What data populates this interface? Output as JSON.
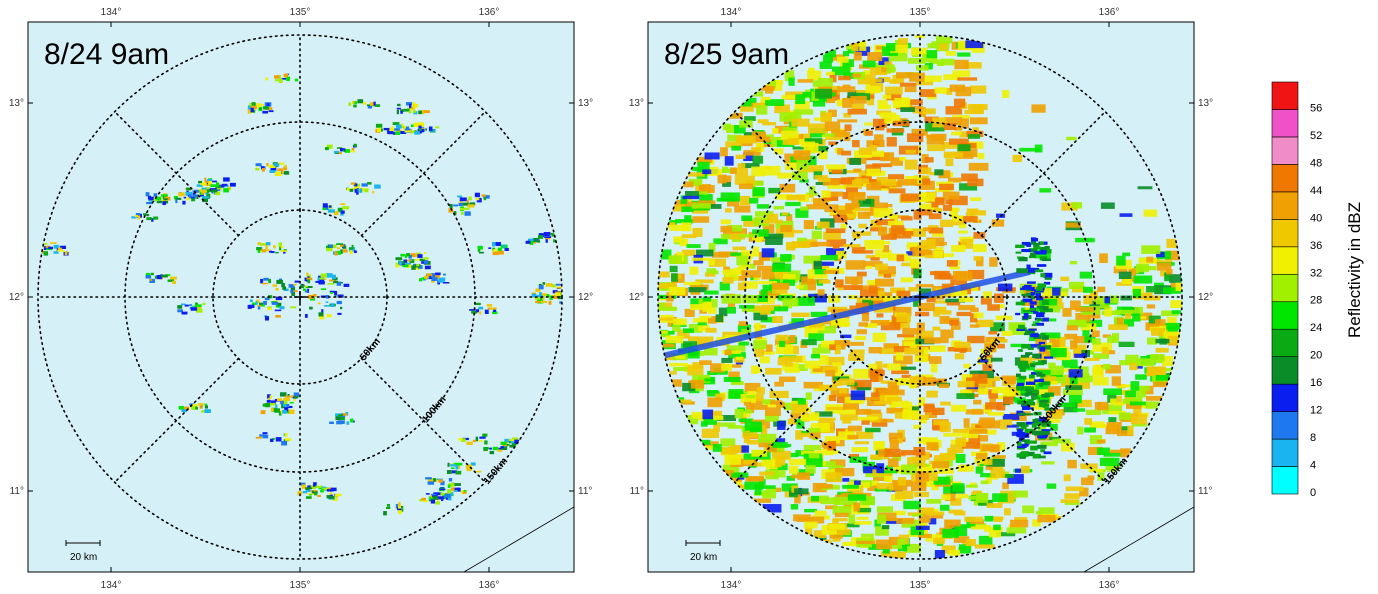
{
  "panels": [
    {
      "id": "left",
      "title": "8/24 9am",
      "lon_ticks": [
        "134°",
        "135°",
        "136°"
      ],
      "lat_ticks": [
        "13°",
        "12°",
        "11°"
      ],
      "range_rings": [
        "50km",
        "100km",
        "150km"
      ],
      "scale_bar": "20 km",
      "coverage": "sparse"
    },
    {
      "id": "right",
      "title": "8/25 9am",
      "lon_ticks": [
        "134°",
        "135°",
        "136°"
      ],
      "lat_ticks": [
        "13°",
        "12°",
        "11°"
      ],
      "range_rings": [
        "50km",
        "100km",
        "150km"
      ],
      "scale_bar": "20 km",
      "coverage": "widespread"
    }
  ],
  "colorbar": {
    "title": "Reflectivity in dBZ",
    "levels": [
      "0",
      "4",
      "8",
      "12",
      "16",
      "20",
      "24",
      "28",
      "32",
      "36",
      "40",
      "44",
      "48",
      "52",
      "56"
    ],
    "colors": [
      "#00ffff",
      "#1ab4f0",
      "#1e78f0",
      "#0a1ef0",
      "#0a8c28",
      "#0aaa14",
      "#00e600",
      "#a0f000",
      "#f0f000",
      "#f0c800",
      "#f0a000",
      "#f07800",
      "#f08cc8",
      "#f050c8",
      "#f01414"
    ]
  },
  "colors": {
    "background": "#d6f0f7",
    "grid": "#000000"
  }
}
